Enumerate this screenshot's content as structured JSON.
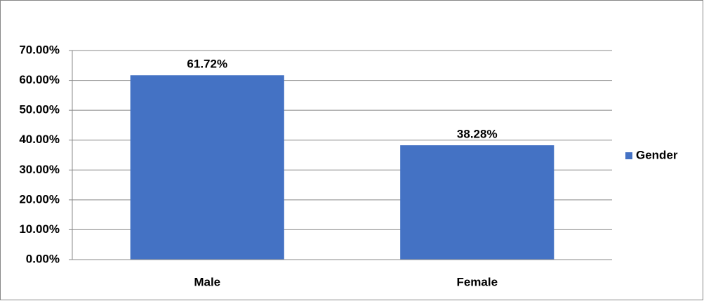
{
  "chart_data": {
    "type": "bar",
    "categories": [
      "Male",
      "Female"
    ],
    "series": [
      {
        "name": "Gender",
        "color": "#4472c4",
        "values": [
          61.72,
          38.28
        ],
        "value_labels": [
          "61.72%",
          "38.28%"
        ]
      }
    ],
    "ylim": [
      0,
      70
    ],
    "yticks": [
      {
        "value": 0,
        "label": "0.00%"
      },
      {
        "value": 10,
        "label": "10.00%"
      },
      {
        "value": 20,
        "label": "20.00%"
      },
      {
        "value": 30,
        "label": "30.00%"
      },
      {
        "value": 40,
        "label": "40.00%"
      },
      {
        "value": 50,
        "label": "50.00%"
      },
      {
        "value": 60,
        "label": "60.00%"
      },
      {
        "value": 70,
        "label": "70.00%"
      }
    ],
    "grid": true,
    "legend": "right"
  }
}
